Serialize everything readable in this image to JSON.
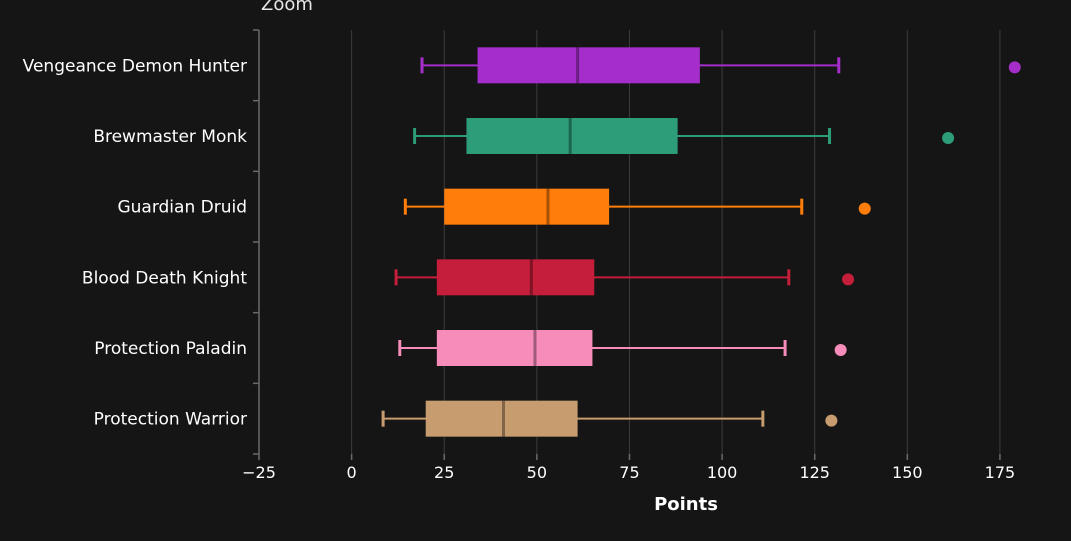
{
  "zoom_label": "Zoom",
  "colors": {
    "background": "#151515",
    "grid": "#3c3c3c",
    "axis": "#6a6a6a",
    "text": "#ffffff"
  },
  "chart_data": {
    "type": "boxplot",
    "orientation": "horizontal",
    "xlabel": "Points",
    "xlim": [
      -25,
      185
    ],
    "xticks": [
      -25,
      0,
      25,
      50,
      75,
      100,
      125,
      150,
      175
    ],
    "xtick_labels": [
      "−25",
      "0",
      "25",
      "50",
      "75",
      "100",
      "125",
      "150",
      "175"
    ],
    "grid": true,
    "categories": [
      "Vengeance Demon Hunter",
      "Brewmaster Monk",
      "Guardian Druid",
      "Blood Death Knight",
      "Protection Paladin",
      "Protection Warrior"
    ],
    "series": [
      {
        "category": "Vengeance Demon Hunter",
        "color": "#a52ecb",
        "min": 19,
        "q1": 34,
        "median": 61,
        "q3": 94,
        "max": 131.5,
        "outliers": [
          179
        ]
      },
      {
        "category": "Brewmaster Monk",
        "color": "#2d9c78",
        "min": 17,
        "q1": 31,
        "median": 59,
        "q3": 88,
        "max": 129,
        "outliers": [
          161
        ]
      },
      {
        "category": "Guardian Druid",
        "color": "#ff7d0a",
        "min": 14.5,
        "q1": 25,
        "median": 53,
        "q3": 69.5,
        "max": 121.5,
        "outliers": [
          138.5
        ]
      },
      {
        "category": "Blood Death Knight",
        "color": "#c41e3a",
        "min": 12,
        "q1": 23,
        "median": 48.5,
        "q3": 65.5,
        "max": 118,
        "outliers": [
          134
        ]
      },
      {
        "category": "Protection Paladin",
        "color": "#f58cba",
        "min": 13,
        "q1": 23,
        "median": 49.5,
        "q3": 65,
        "max": 117,
        "outliers": [
          132
        ]
      },
      {
        "category": "Protection Warrior",
        "color": "#c79c6e",
        "min": 8.5,
        "q1": 20,
        "median": 41,
        "q3": 61,
        "max": 111,
        "outliers": [
          129.5
        ]
      }
    ]
  }
}
